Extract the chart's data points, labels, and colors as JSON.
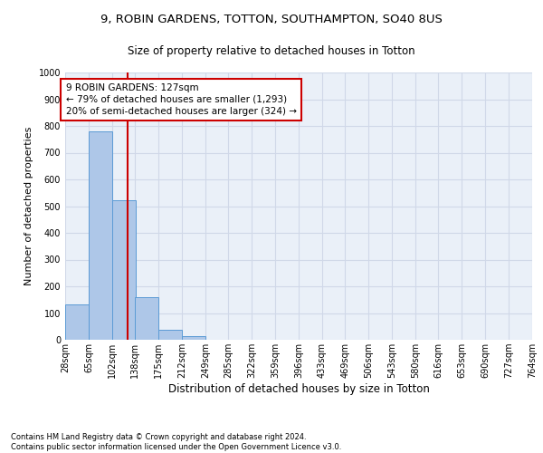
{
  "title1": "9, ROBIN GARDENS, TOTTON, SOUTHAMPTON, SO40 8US",
  "title2": "Size of property relative to detached houses in Totton",
  "xlabel": "Distribution of detached houses by size in Totton",
  "ylabel": "Number of detached properties",
  "footnote": "Contains HM Land Registry data © Crown copyright and database right 2024.\nContains public sector information licensed under the Open Government Licence v3.0.",
  "bin_edges": [
    28,
    65,
    102,
    138,
    175,
    212,
    249,
    285,
    322,
    359,
    396,
    433,
    469,
    506,
    543,
    580,
    616,
    653,
    690,
    727,
    764
  ],
  "bin_labels": [
    "28sqm",
    "65sqm",
    "102sqm",
    "138sqm",
    "175sqm",
    "212sqm",
    "249sqm",
    "285sqm",
    "322sqm",
    "359sqm",
    "396sqm",
    "433sqm",
    "469sqm",
    "506sqm",
    "543sqm",
    "580sqm",
    "616sqm",
    "653sqm",
    "690sqm",
    "727sqm",
    "764sqm"
  ],
  "counts": [
    133,
    778,
    522,
    158,
    37,
    14,
    0,
    0,
    0,
    0,
    0,
    0,
    0,
    0,
    0,
    0,
    0,
    0,
    0,
    0
  ],
  "bar_color": "#aec7e8",
  "bar_edge_color": "#5b9bd5",
  "property_size": 127,
  "vline_color": "#cc0000",
  "annotation_line1": "9 ROBIN GARDENS: 127sqm",
  "annotation_line2": "← 79% of detached houses are smaller (1,293)",
  "annotation_line3": "20% of semi-detached houses are larger (324) →",
  "annotation_box_color": "#cc0000",
  "ylim": [
    0,
    1000
  ],
  "yticks": [
    0,
    100,
    200,
    300,
    400,
    500,
    600,
    700,
    800,
    900,
    1000
  ],
  "grid_color": "#d0d8e8",
  "bg_color": "#eaf0f8",
  "title1_fontsize": 9.5,
  "title2_fontsize": 8.5,
  "xlabel_fontsize": 8.5,
  "ylabel_fontsize": 8,
  "tick_fontsize": 7,
  "annotation_fontsize": 7.5,
  "footnote_fontsize": 6
}
